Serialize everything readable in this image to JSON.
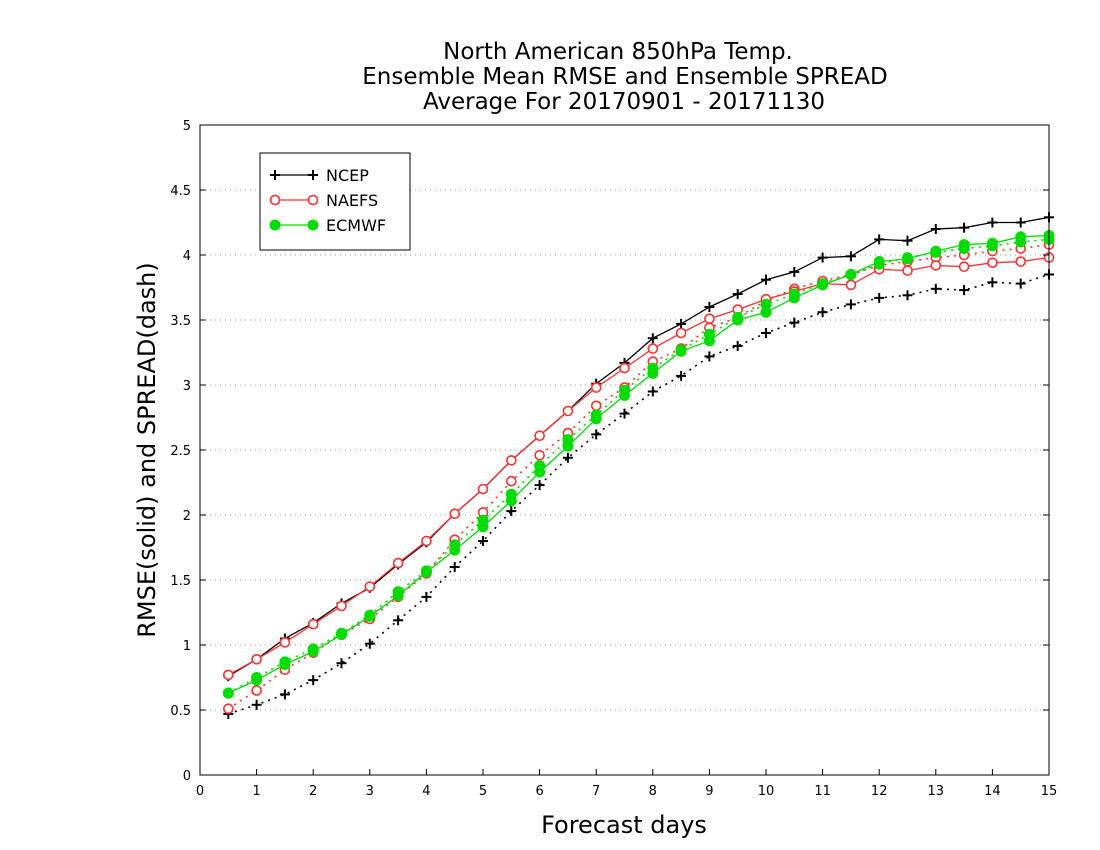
{
  "chart_data": {
    "type": "line",
    "title_lines": [
      "North American 850hPa Temp.",
      "Ensemble Mean RMSE and Ensemble SPREAD",
      "Average For 20170901 - 20171130"
    ],
    "xlabel": "Forecast days",
    "ylabel": "RMSE(solid) and SPREAD(dash)",
    "xlim": [
      0,
      15
    ],
    "ylim": [
      0,
      5
    ],
    "x_ticks": [
      "0",
      "1",
      "2",
      "3",
      "4",
      "5",
      "6",
      "7",
      "8",
      "9",
      "10",
      "11",
      "12",
      "13",
      "14",
      "15"
    ],
    "y_ticks": [
      "0",
      "0.5",
      "1",
      "1.5",
      "2",
      "2.5",
      "3",
      "3.5",
      "4",
      "4.5",
      "5"
    ],
    "grid": "horizontal dotted",
    "legend_placement": "top-left",
    "x": [
      0.5,
      1,
      1.5,
      2,
      2.5,
      3,
      3.5,
      4,
      4.5,
      5,
      5.5,
      6,
      6.5,
      7,
      7.5,
      8,
      8.5,
      9,
      9.5,
      10,
      10.5,
      11,
      11.5,
      12,
      12.5,
      13,
      13.5,
      14,
      14.5,
      15
    ],
    "series": [
      {
        "name": "NCEP",
        "color": "#000000",
        "marker": "plus",
        "rmse": [
          0.76,
          0.89,
          1.05,
          1.17,
          1.32,
          1.44,
          1.62,
          1.79,
          2.01,
          2.2,
          2.42,
          2.61,
          2.8,
          3.01,
          3.17,
          3.36,
          3.47,
          3.6,
          3.7,
          3.81,
          3.87,
          3.98,
          3.99,
          4.12,
          4.11,
          4.2,
          4.21,
          4.25,
          4.25,
          4.29
        ],
        "spread": [
          0.47,
          0.54,
          0.62,
          0.73,
          0.86,
          1.01,
          1.19,
          1.37,
          1.6,
          1.8,
          2.03,
          2.23,
          2.44,
          2.62,
          2.78,
          2.95,
          3.07,
          3.22,
          3.3,
          3.4,
          3.48,
          3.56,
          3.62,
          3.67,
          3.69,
          3.74,
          3.73,
          3.79,
          3.78,
          3.85
        ]
      },
      {
        "name": "NAEFS",
        "color": "#ff3030",
        "marker": "open-circle",
        "rmse": [
          0.77,
          0.89,
          1.02,
          1.16,
          1.3,
          1.45,
          1.63,
          1.8,
          2.01,
          2.2,
          2.42,
          2.61,
          2.8,
          2.98,
          3.13,
          3.28,
          3.4,
          3.51,
          3.58,
          3.66,
          3.72,
          3.78,
          3.77,
          3.89,
          3.88,
          3.92,
          3.91,
          3.94,
          3.95,
          3.98
        ],
        "spread": [
          0.51,
          0.65,
          0.81,
          0.94,
          1.08,
          1.2,
          1.37,
          1.55,
          1.81,
          2.02,
          2.26,
          2.46,
          2.63,
          2.84,
          2.98,
          3.18,
          3.28,
          3.44,
          3.52,
          3.65,
          3.74,
          3.8,
          3.85,
          3.92,
          3.95,
          3.98,
          4.0,
          4.03,
          4.05,
          4.08
        ]
      },
      {
        "name": "ECMWF",
        "color": "#00dd00",
        "marker": "filled-circle",
        "rmse": [
          0.63,
          0.73,
          0.85,
          0.95,
          1.08,
          1.22,
          1.38,
          1.56,
          1.73,
          1.91,
          2.11,
          2.33,
          2.53,
          2.74,
          2.92,
          3.09,
          3.26,
          3.34,
          3.5,
          3.56,
          3.67,
          3.77,
          3.85,
          3.95,
          3.97,
          4.03,
          4.08,
          4.09,
          4.14,
          4.15
        ],
        "spread": [
          0.63,
          0.75,
          0.87,
          0.97,
          1.09,
          1.23,
          1.41,
          1.57,
          1.77,
          1.96,
          2.16,
          2.38,
          2.58,
          2.77,
          2.96,
          3.13,
          3.27,
          3.39,
          3.52,
          3.62,
          3.7,
          3.78,
          3.85,
          3.93,
          3.98,
          4.02,
          4.05,
          4.07,
          4.1,
          4.12
        ]
      }
    ]
  }
}
